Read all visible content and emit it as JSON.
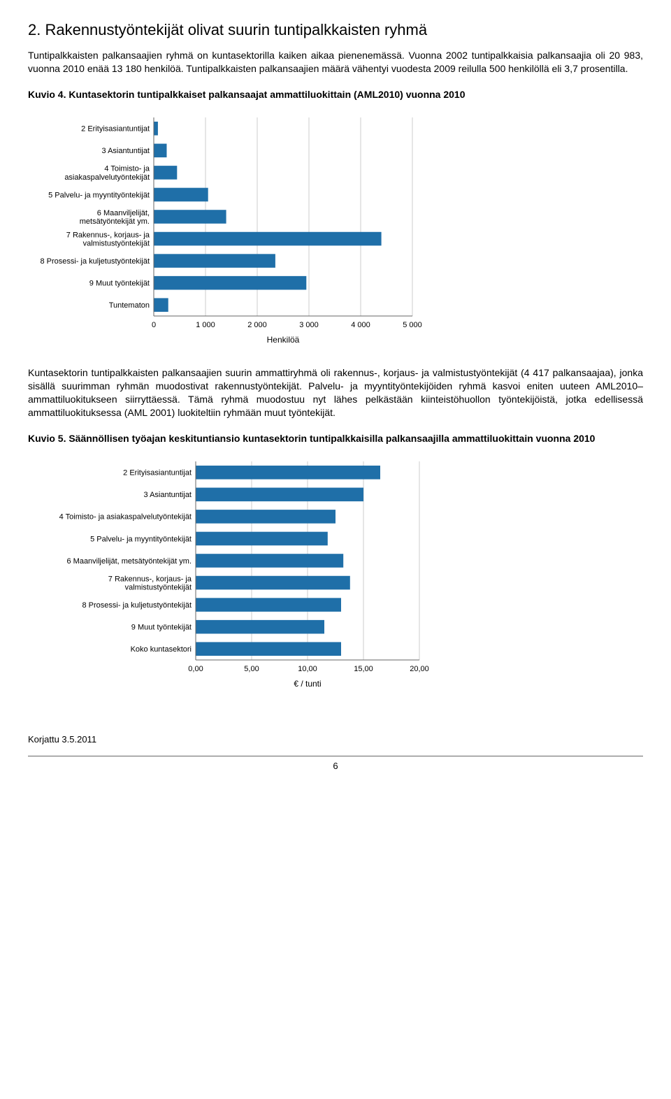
{
  "section_title": "2. Rakennustyöntekijät olivat suurin tuntipalkkaisten ryhmä",
  "para1": "Tuntipalkkaisten palkansaajien ryhmä on kuntasektorilla kaiken aikaa pienenemässä. Vuonna 2002 tuntipalkkaisia palkansaajia oli 20 983, vuonna 2010 enää 13 180 henkilöä. Tuntipalkkaisten palkansaajien määrä vähentyi vuodesta 2009 reilulla 500 henkilöllä eli 3,7 prosentilla.",
  "fig4_caption": "Kuvio 4. Kuntasektorin tuntipalkkaiset palkansaajat ammattiluokittain (AML2010) vuonna 2010",
  "fig4": {
    "type": "bar-horizontal",
    "bar_color": "#1f6fa8",
    "axis_color": "#666666",
    "grid_color": "#cccccc",
    "bg_color": "#ffffff",
    "text_color": "#000000",
    "xlabel": "Henkilöä",
    "xlim": [
      0,
      5000
    ],
    "xticks": [
      0,
      1000,
      2000,
      3000,
      4000,
      5000
    ],
    "xtick_labels": [
      "0",
      "1 000",
      "2 000",
      "3 000",
      "4 000",
      "5 000"
    ],
    "categories": [
      "2 Erityisasiantuntijat",
      "3 Asiantuntijat",
      "4 Toimisto- ja\nasiakaspalvelutyöntekijät",
      "5 Palvelu- ja myyntityöntekijät",
      "6 Maanviljelijät,\nmetsätyöntekijät ym.",
      "7 Rakennus-, korjaus- ja\nvalmistustyöntekijät",
      "8 Prosessi- ja kuljetustyöntekijät",
      "9 Muut työntekijät",
      "Tuntematon"
    ],
    "values": [
      80,
      250,
      450,
      1050,
      1400,
      4400,
      2350,
      2950,
      280
    ],
    "label_fontsize": 11,
    "tick_fontsize": 11
  },
  "para2": "Kuntasektorin tuntipalkkaisten palkansaajien suurin ammattiryhmä oli rakennus-, korjaus- ja valmistustyöntekijät (4 417 palkansaajaa), jonka sisällä suurimman ryhmän muodostivat rakennustyöntekijät. Palvelu- ja myyntityöntekijöiden ryhmä kasvoi eniten uuteen AML2010–ammattiluokitukseen siirryttäessä. Tämä ryhmä muodostuu nyt lähes pelkästään kiinteistöhuollon työntekijöistä, jotka edellisessä ammattiluokituksessa (AML 2001) luokiteltiin ryhmään muut työntekijät.",
  "fig5_caption": "Kuvio 5. Säännöllisen työajan keskituntiansio kuntasektorin tuntipalkkaisilla palkansaajilla ammattiluokittain vuonna 2010",
  "fig5": {
    "type": "bar-horizontal",
    "bar_color": "#1f6fa8",
    "axis_color": "#666666",
    "grid_color": "#cccccc",
    "bg_color": "#ffffff",
    "text_color": "#000000",
    "xlabel": "€ / tunti",
    "xlim": [
      0,
      20
    ],
    "xticks": [
      0,
      5,
      10,
      15,
      20
    ],
    "xtick_labels": [
      "0,00",
      "5,00",
      "10,00",
      "15,00",
      "20,00"
    ],
    "categories": [
      "2 Erityisasiantuntijat",
      "3 Asiantuntijat",
      "4 Toimisto- ja asiakaspalvelutyöntekijät",
      "5 Palvelu- ja myyntityöntekijät",
      "6 Maanviljelijät, metsätyöntekijät ym.",
      "7 Rakennus-, korjaus- ja\nvalmistustyöntekijät",
      "8 Prosessi- ja kuljetustyöntekijät",
      "9 Muut työntekijät",
      "Koko kuntasektori"
    ],
    "values": [
      16.5,
      15.0,
      12.5,
      11.8,
      13.2,
      13.8,
      13.0,
      11.5,
      13.0
    ],
    "label_fontsize": 11,
    "tick_fontsize": 11
  },
  "corrected_note": "Korjattu 3.5.2011",
  "page_number": "6"
}
